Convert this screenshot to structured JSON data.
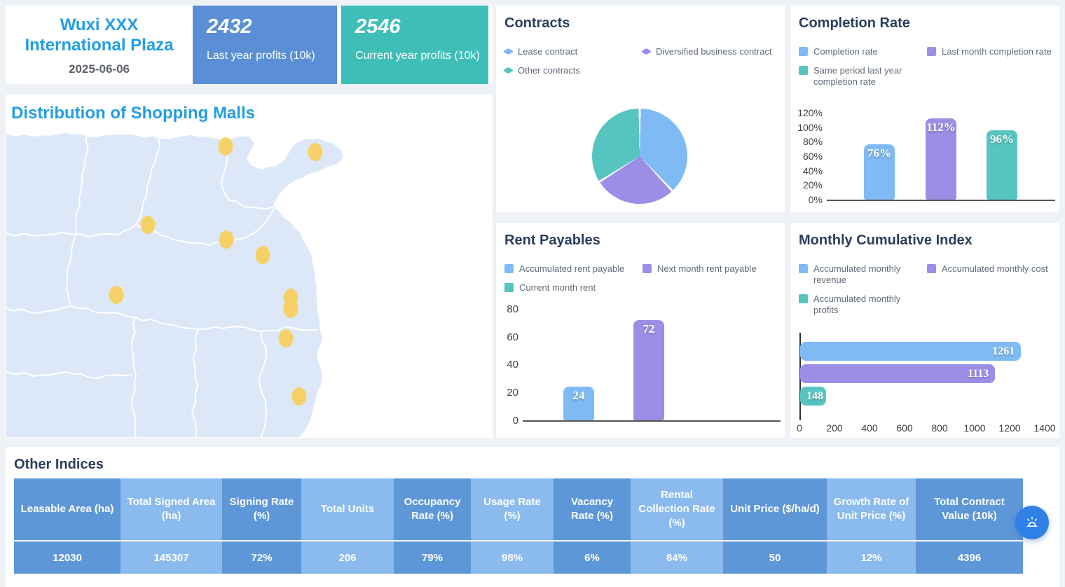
{
  "colors": {
    "accent_blue": "#229ee2",
    "panel_title": "#2c3e5f",
    "kpi_blue": "#5a8ed5",
    "kpi_teal": "#3fbeb8",
    "series_blue": "#7fbaf4",
    "series_purple": "#9b8ee6",
    "series_teal": "#57c5bf",
    "table_col_dark": "#5e97d8",
    "table_col_light": "#8abaee",
    "map_land": "#dce7f8",
    "map_dot": "#f6d167",
    "fab": "#2f80e7",
    "legend_text": "#5f6b7a",
    "axis_text": "#444444"
  },
  "header": {
    "title_line1": "Wuxi XXX",
    "title_line2": "International Plaza",
    "date": "2025-06-06",
    "kpis": [
      {
        "value": "2432",
        "label": "Last year profits (10k)"
      },
      {
        "value": "2546",
        "label": "Current year profits (10k)"
      }
    ]
  },
  "map": {
    "title": "Distribution of Shopping Malls",
    "dots": [
      [
        314,
        24
      ],
      [
        442,
        32
      ],
      [
        203,
        136
      ],
      [
        315,
        157
      ],
      [
        367,
        179
      ],
      [
        158,
        236
      ],
      [
        407,
        240
      ],
      [
        407,
        256
      ],
      [
        400,
        298
      ],
      [
        419,
        381
      ]
    ]
  },
  "chart_data": [
    {
      "id": "contracts",
      "type": "pie",
      "title": "Contracts",
      "labels": [
        "Lease contract",
        "Diversified business contract",
        "Other contracts"
      ],
      "values": [
        38,
        28,
        34
      ],
      "colors": [
        "#7fbaf4",
        "#9b8ee6",
        "#57c5bf"
      ],
      "legend_position": "top"
    },
    {
      "id": "completion-rate",
      "type": "bar",
      "title": "Completion Rate",
      "categories": [
        "Completion rate",
        "Last month completion rate",
        "Same period last year completion rate"
      ],
      "values": [
        76,
        112,
        96
      ],
      "value_labels": [
        "76%",
        "112%",
        "96%"
      ],
      "colors": [
        "#7fbaf4",
        "#9b8ee6",
        "#57c5bf"
      ],
      "ylabel": "",
      "ylim": [
        0,
        120
      ],
      "ytick_step": 20,
      "ytick_suffix": "%",
      "grid": false,
      "legend_position": "top"
    },
    {
      "id": "rent-payables",
      "type": "bar",
      "title": "Rent Payables",
      "categories": [
        "Accumulated rent payable",
        "Next month rent payable",
        "Current month rent"
      ],
      "values": [
        24,
        72,
        0
      ],
      "value_labels": [
        "24",
        "72",
        ""
      ],
      "colors": [
        "#7fbaf4",
        "#9b8ee6",
        "#57c5bf"
      ],
      "ylabel": "",
      "ylim": [
        0,
        80
      ],
      "ytick_step": 20,
      "ytick_suffix": "",
      "grid": false,
      "legend_position": "top"
    },
    {
      "id": "monthly-cumulative-index",
      "type": "bar-horizontal",
      "title": "Monthly Cumulative Index",
      "categories": [
        "Accumulated monthly revenue",
        "Accumulated monthly cost",
        "Accumulated monthly profits"
      ],
      "values": [
        1261,
        1113,
        148
      ],
      "value_labels": [
        "1261",
        "1113",
        "148"
      ],
      "colors": [
        "#7fbaf4",
        "#9b8ee6",
        "#57c5bf"
      ],
      "xlim": [
        0,
        1400
      ],
      "xtick_step": 200,
      "grid": false,
      "legend_position": "top"
    },
    {
      "id": "other-indices",
      "type": "table",
      "title": "Other Indices",
      "columns": [
        "Leasable Area (ha)",
        "Total Signed Area (ha)",
        "Signing Rate (%)",
        "Total Units",
        "Occupancy Rate (%)",
        "Usage Rate (%)",
        "Vacancy Rate (%)",
        "Rental Collection Rate (%)",
        "Unit Price ($/ha/d)",
        "Growth Rate of Unit Price (%)",
        "Total Contract Value (10k)"
      ],
      "rows": [
        [
          "12030",
          "145307",
          "72%",
          "206",
          "79%",
          "98%",
          "6%",
          "84%",
          "50",
          "12%",
          "4396"
        ]
      ]
    }
  ],
  "fab": {
    "icon": "alarm-icon"
  }
}
